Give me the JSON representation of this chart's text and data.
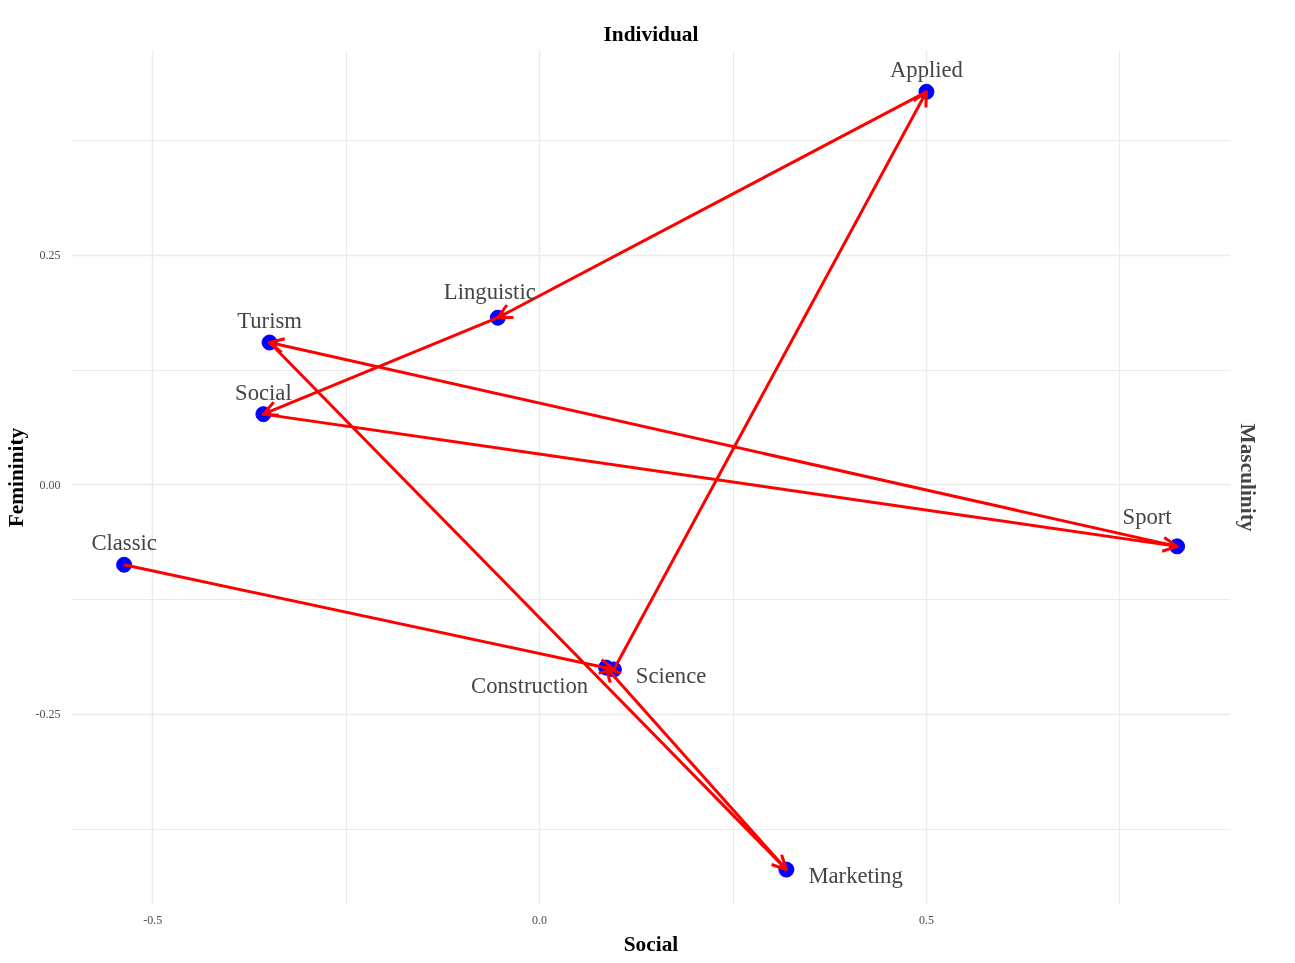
{
  "chart_data": {
    "type": "scatter",
    "title": "Individual",
    "xlabel": "Social",
    "ylabel": "Femininity",
    "y2label": "Masculinity",
    "series": [
      {
        "marker": "circle",
        "color": "#0000ff",
        "x": [
          0.5,
          -0.054,
          -0.349,
          -0.357,
          -0.537,
          0.096,
          0.086,
          0.319,
          0.824
        ],
        "values": [
          0.428,
          0.182,
          0.155,
          0.077,
          -0.087,
          -0.201,
          -0.199,
          -0.419,
          -0.067
        ]
      },
      {
        "type": "line",
        "marker": "none",
        "color": "#ff0000",
        "x": [
          -0.537,
          0.096,
          0.5,
          -0.054,
          -0.357,
          0.824,
          -0.349,
          0.319,
          0.086
        ],
        "values": [
          -0.087,
          -0.201,
          0.428,
          0.182,
          0.077,
          -0.067,
          0.155,
          -0.419,
          -0.199
        ]
      }
    ],
    "annotations": [
      {
        "text": "Applied",
        "x": 0.5,
        "y": 0.428
      },
      {
        "text": "Linguistic",
        "x": -0.054,
        "y": 0.182
      },
      {
        "text": "Turism",
        "x": -0.349,
        "y": 0.155
      },
      {
        "text": "Social",
        "x": -0.357,
        "y": 0.077
      },
      {
        "text": "Classic",
        "x": -0.537,
        "y": -0.087
      },
      {
        "text": "Science",
        "x": 0.096,
        "y": -0.201
      },
      {
        "text": "Construction",
        "x": 0.086,
        "y": -0.199
      },
      {
        "text": "Marketing",
        "x": 0.319,
        "y": -0.419
      },
      {
        "text": "Sport",
        "x": 0.824,
        "y": -0.067
      }
    ],
    "xlim": [
      -0.605,
      0.893
    ],
    "ylim": [
      -0.457,
      0.473
    ],
    "xticks": [
      {
        "value": -0.5,
        "label": "-0.5"
      },
      {
        "value": 0,
        "label": "0.0"
      },
      {
        "value": 0.5,
        "label": "0.5"
      }
    ],
    "yticks": [
      {
        "value": -0.25,
        "label": "-0.25"
      },
      {
        "value": 0,
        "label": "0.00"
      },
      {
        "value": 0.25,
        "label": "0.25"
      }
    ],
    "grid": true,
    "line_style": "solid"
  }
}
